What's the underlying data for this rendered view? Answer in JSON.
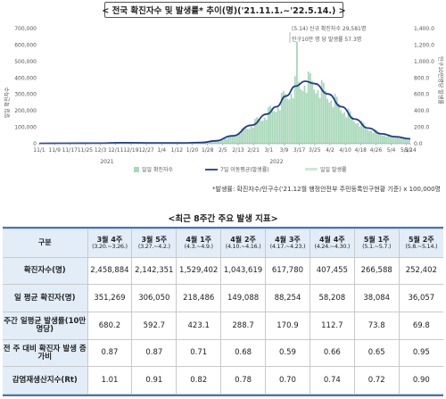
{
  "title": "< 전국 확진자수 및 발생률* 추이(명)('21.11.1.~'22.5.14.) >",
  "note": "*발생률: 확진자수/인구수('21.12월 행정안전부 주민등록인구현황 기준) x 100,000명",
  "colors": {
    "bars": "#a8d8b9",
    "line": "#1f3c88",
    "header_bg": "#e3edf8",
    "border_accent": "#3a7ac0"
  },
  "chart_data": {
    "type": "bar",
    "title": "< 전국 확진자수 및 발생률* 추이(명)('21.11.1.~'22.5.14.) >",
    "ylabel_left": "일일 확진자수",
    "ylabel_right": "인구10만명당 발생률",
    "ylim_left": [
      0,
      700000
    ],
    "ylim_right": [
      0,
      1400
    ],
    "y_ticks_left": [
      "0",
      "100,000",
      "200,000",
      "300,000",
      "400,000",
      "500,000",
      "600,000",
      "700,000"
    ],
    "y_ticks_right": [
      "0.0",
      "200.0",
      "400.0",
      "600.0",
      "800.0",
      "1,000.0",
      "1,200.0",
      "1,400.0"
    ],
    "x_tick_labels": [
      "11/1",
      "11/9",
      "11/17",
      "11/25",
      "12/3",
      "12/11",
      "12/19",
      "12/27",
      "1/4",
      "1/12",
      "1/20",
      "1/28",
      "2/5",
      "2/13",
      "2/21",
      "3/1",
      "3/9",
      "3/17",
      "3/25",
      "4/2",
      "4/10",
      "4/18",
      "4/26",
      "5/4",
      "5/12",
      "5/14"
    ],
    "year_labels": [
      "2021",
      "2022"
    ],
    "annotation": [
      "(5.14) 신규 확진자수 29,581명",
      "인구10만 명 당 발생률 57.3명"
    ],
    "legend": [
      "일일 확진자수",
      "7일 이동평균(발생률)",
      "일일 발생률"
    ],
    "grid": false,
    "series": [
      {
        "name": "7일 이동평균(발생률)",
        "x": [
          "11/1",
          "11/15",
          "12/1",
          "12/15",
          "1/1",
          "1/15",
          "1/25",
          "2/1",
          "2/10",
          "2/20",
          "2/28",
          "3/5",
          "3/10",
          "3/15",
          "3/20",
          "3/25",
          "4/1",
          "4/8",
          "4/15",
          "4/22",
          "4/29",
          "5/6",
          "5/14"
        ],
        "values": [
          4,
          5,
          7,
          12,
          9,
          9,
          15,
          35,
          95,
          225,
          360,
          450,
          580,
          700,
          760,
          730,
          605,
          450,
          300,
          190,
          120,
          85,
          60
        ]
      }
    ],
    "daily_cases_peak": {
      "x": "3/16",
      "value": 621000
    }
  },
  "table": {
    "title": "<최근 8주간 주요 발생 지표>",
    "corner": "구분",
    "columns": [
      {
        "week": "3월 4주",
        "range": "(3.20.~3.26.)"
      },
      {
        "week": "3월 5주",
        "range": "(3.27.~4.2.)"
      },
      {
        "week": "4월 1주",
        "range": "(4.3.~4.9.)"
      },
      {
        "week": "4월 2주",
        "range": "(4.10.~4.16.)"
      },
      {
        "week": "4월 3주",
        "range": "(4.17.~4.23.)"
      },
      {
        "week": "4월 4주",
        "range": "(4.24.~4.30.)"
      },
      {
        "week": "5월 1주",
        "range": "(5.1.~5.7.)"
      },
      {
        "week": "5월 2주",
        "range": "(5.8.~5.14.)"
      }
    ],
    "rows": [
      {
        "label": "확진자수(명)",
        "values": [
          "2,458,884",
          "2,142,351",
          "1,529,402",
          "1,043,619",
          "617,780",
          "407,455",
          "266,588",
          "252,402"
        ]
      },
      {
        "label": "일 평균 확진자(명)",
        "values": [
          "351,269",
          "306,050",
          "218,486",
          "149,088",
          "88,254",
          "58,208",
          "38,084",
          "36,057"
        ]
      },
      {
        "label": "주간 일평균 발생률(10만 명당)",
        "values": [
          "680.2",
          "592.7",
          "423.1",
          "288.7",
          "170.9",
          "112.7",
          "73.8",
          "69.8"
        ]
      },
      {
        "label": "전 주 대비 확진자 발생 증가비",
        "values": [
          "0.87",
          "0.87",
          "0.71",
          "0.68",
          "0.59",
          "0.66",
          "0.65",
          "0.95"
        ]
      },
      {
        "label": "감염재생산지수(Rt)",
        "values": [
          "1.01",
          "0.91",
          "0.82",
          "0.78",
          "0.70",
          "0.74",
          "0.72",
          "0.90"
        ]
      }
    ]
  }
}
